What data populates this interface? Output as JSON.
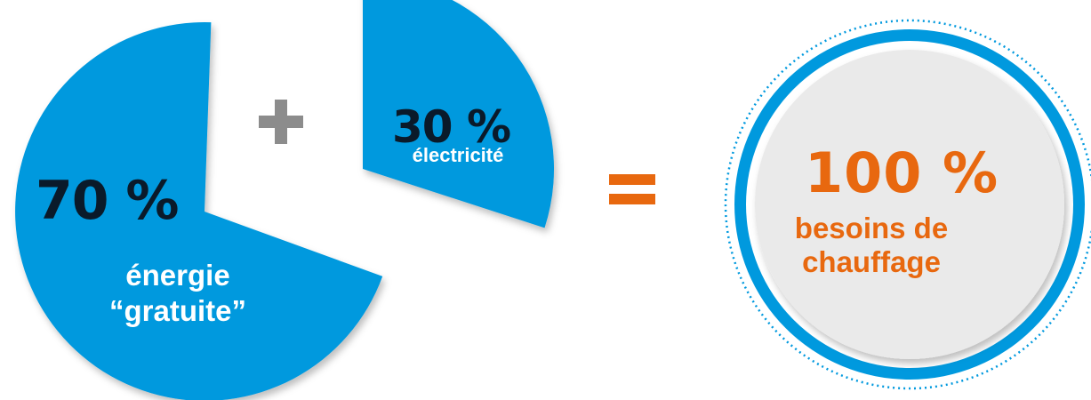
{
  "colors": {
    "slice_blue": "#0099de",
    "operator_grey": "#8c8c8c",
    "operator_orange": "#e8680f",
    "result_fill": "#eaeaea",
    "pct_text": "#0a1a2a",
    "result_text": "#e8680f"
  },
  "chart_data": {
    "type": "pie",
    "slices": [
      {
        "value": 70,
        "pct_label": "70 %",
        "label_line1": "énergie",
        "label_line2": "“gratuite”"
      },
      {
        "value": 30,
        "pct_label": "30 %",
        "label": "électricité"
      }
    ]
  },
  "plus_symbol": "+",
  "equals_symbol": "=",
  "result": {
    "pct_label": "100 %",
    "label_line1": "besoins de",
    "label_line2": "chauffage"
  }
}
